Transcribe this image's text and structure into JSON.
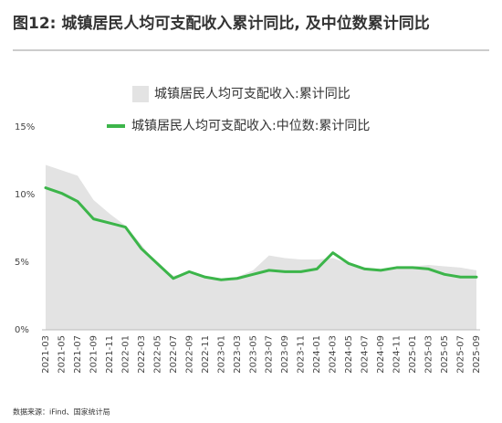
{
  "chart_data": {
    "type": "area_line",
    "title": "图12: 城镇居民人均可支配收入累计同比, 及中位数累计同比",
    "source": "数据来源：iFind、国家统计局",
    "categories": [
      "2021-03",
      "2021-05",
      "2021-07",
      "2021-09",
      "2021-11",
      "2022-01",
      "2022-03",
      "2022-05",
      "2022-07",
      "2022-09",
      "2022-11",
      "2023-01",
      "2023-03",
      "2023-05",
      "2023-07",
      "2023-09",
      "2023-11",
      "2024-01",
      "2024-03",
      "2024-05",
      "2024-07",
      "2024-09",
      "2024-11",
      "2025-01",
      "2025-03",
      "2025-05",
      "2025-07",
      "2025-09"
    ],
    "series": [
      {
        "name": "城镇居民人均可支配收入:累计同比",
        "kind": "area",
        "color": "#e3e3e3",
        "values": [
          12.2,
          11.8,
          11.4,
          9.6,
          8.6,
          7.7,
          6.3,
          4.8,
          4.0,
          4.2,
          3.9,
          3.8,
          3.9,
          4.4,
          5.5,
          5.3,
          5.2,
          5.2,
          5.3,
          4.9,
          4.6,
          4.5,
          4.5,
          4.7,
          4.8,
          4.7,
          4.6,
          4.4
        ]
      },
      {
        "name": "城镇居民人均可支配收入:中位数:累计同比",
        "kind": "line",
        "color": "#3cb54a",
        "values": [
          10.5,
          10.1,
          9.5,
          8.2,
          7.9,
          7.6,
          6.0,
          4.9,
          3.8,
          4.3,
          3.9,
          3.7,
          3.8,
          4.1,
          4.4,
          4.3,
          4.3,
          4.5,
          5.7,
          4.9,
          4.5,
          4.4,
          4.6,
          4.6,
          4.5,
          4.1,
          3.9,
          3.9
        ]
      }
    ],
    "ylim": [
      0,
      15
    ],
    "yticks": [
      {
        "value": 0,
        "label": "0%"
      },
      {
        "value": 5,
        "label": "5%"
      },
      {
        "value": 10,
        "label": "10%"
      },
      {
        "value": 15,
        "label": "15%"
      }
    ]
  }
}
